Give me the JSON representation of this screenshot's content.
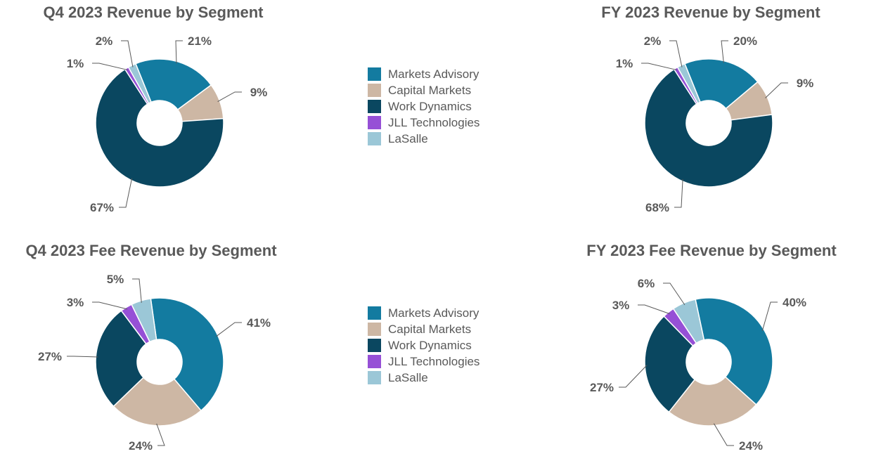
{
  "legend": [
    "Markets Advisory",
    "Capital Markets",
    "Work Dynamics",
    "JLL Technologies",
    "LaSalle"
  ],
  "colors": [
    "#137BA0",
    "#CDB7A4",
    "#0A4760",
    "#9650D6",
    "#9BC7D7"
  ],
  "chart_data": [
    {
      "type": "pie",
      "title": "Q4 2023 Revenue by Segment",
      "categories": [
        "Markets Advisory",
        "Capital Markets",
        "Work Dynamics",
        "JLL Technologies",
        "LaSalle"
      ],
      "values": [
        21,
        9,
        67,
        1,
        2
      ],
      "labels": [
        "21%",
        "9%",
        "67%",
        "1%",
        "2%"
      ]
    },
    {
      "type": "pie",
      "title": "FY 2023 Revenue by Segment",
      "categories": [
        "Markets Advisory",
        "Capital Markets",
        "Work Dynamics",
        "JLL Technologies",
        "LaSalle"
      ],
      "values": [
        20,
        9,
        68,
        1,
        2
      ],
      "labels": [
        "20%",
        "9%",
        "68%",
        "1%",
        "2%"
      ]
    },
    {
      "type": "pie",
      "title": "Q4 2023 Fee Revenue by Segment",
      "categories": [
        "Markets Advisory",
        "Capital Markets",
        "Work Dynamics",
        "JLL Technologies",
        "LaSalle"
      ],
      "values": [
        41,
        24,
        27,
        3,
        5
      ],
      "labels": [
        "41%",
        "24%",
        "27%",
        "3%",
        "5%"
      ]
    },
    {
      "type": "pie",
      "title": "FY 2023 Fee Revenue by Segment",
      "categories": [
        "Markets Advisory",
        "Capital Markets",
        "Work Dynamics",
        "JLL Technologies",
        "LaSalle"
      ],
      "values": [
        40,
        24,
        27,
        3,
        6
      ],
      "labels": [
        "40%",
        "24%",
        "27%",
        "3%",
        "6%"
      ]
    }
  ]
}
